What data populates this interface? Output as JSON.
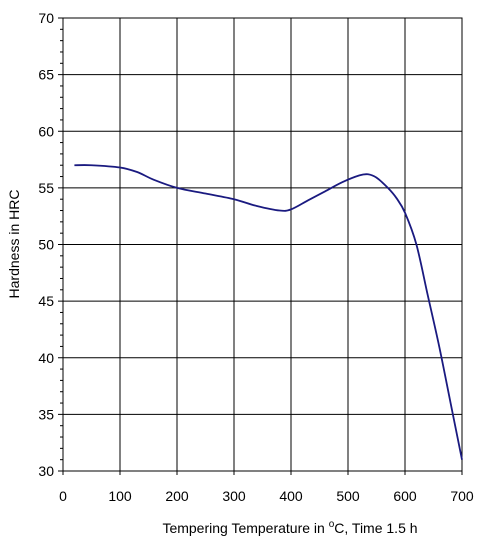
{
  "chart_data": {
    "type": "line",
    "title": "",
    "xlabel": {
      "main": "Tempering Temperature in ",
      "sup": "o",
      "rest": "C, Time 1.5 h"
    },
    "ylabel": "Hardness in HRC",
    "xlim": [
      0,
      700
    ],
    "ylim": [
      30,
      70
    ],
    "x_ticks": [
      0,
      100,
      200,
      300,
      400,
      500,
      600,
      700
    ],
    "y_ticks": [
      30,
      35,
      40,
      45,
      50,
      55,
      60,
      65,
      70
    ],
    "x_tick_labels": [
      "0",
      "100",
      "200",
      "300",
      "400",
      "500",
      "600",
      "700"
    ],
    "y_tick_labels": [
      "30",
      "35",
      "40",
      "45",
      "50",
      "55",
      "60",
      "65",
      "70"
    ],
    "grid": true,
    "line_color": "#1a1a80",
    "series": [
      {
        "x": [
          20,
          50,
          100,
          130,
          160,
          200,
          250,
          300,
          340,
          380,
          400,
          430,
          460,
          490,
          520,
          535,
          550,
          570,
          585,
          600,
          620,
          640,
          660,
          680,
          700
        ],
        "y": [
          57.0,
          57.0,
          56.8,
          56.4,
          55.7,
          55.0,
          54.5,
          54.0,
          53.4,
          53.0,
          53.1,
          53.9,
          54.7,
          55.5,
          56.1,
          56.2,
          55.9,
          55.0,
          54.1,
          52.8,
          50.0,
          45.5,
          41.0,
          36.0,
          31.0
        ]
      }
    ]
  }
}
